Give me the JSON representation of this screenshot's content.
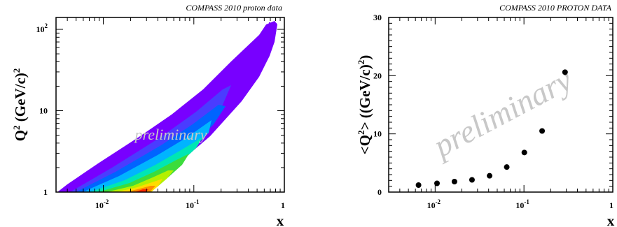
{
  "chart_data": [
    {
      "type": "heatmap",
      "title": "COMPASS 2010 proton data",
      "xlabel": "x",
      "ylabel": "Q^2 (GeV/c)^2",
      "xscale": "log",
      "yscale": "log",
      "xlim": [
        0.003,
        1
      ],
      "ylim": [
        1,
        140
      ],
      "x_ticks": [
        {
          "base": "10",
          "exp": "-2"
        },
        {
          "base": "10",
          "exp": "-1"
        },
        {
          "base": "1",
          "exp": ""
        }
      ],
      "y_ticks": [
        {
          "base": "1",
          "exp": ""
        },
        {
          "base": "10",
          "exp": ""
        },
        {
          "base": "10",
          "exp": "2"
        }
      ],
      "watermark": "preliminary",
      "colormap": [
        "#7800ff",
        "#4a3cff",
        "#0064ff",
        "#00b4ff",
        "#00e6b4",
        "#3cdc3c",
        "#b4f000",
        "#ffdc00",
        "#ff8c00",
        "#ff2800"
      ]
    },
    {
      "type": "scatter",
      "title": "COMPASS 2010 PROTON DATA",
      "xlabel": "x",
      "ylabel": "<Q^2> ((GeV/c)^2)",
      "xscale": "log",
      "xlim": [
        0.003,
        1
      ],
      "ylim": [
        0,
        30
      ],
      "x_ticks": [
        {
          "base": "10",
          "exp": "-2"
        },
        {
          "base": "10",
          "exp": "-1"
        },
        {
          "base": "1",
          "exp": ""
        }
      ],
      "y_ticks": [
        "0",
        "10",
        "20",
        "30"
      ],
      "watermark": "preliminary",
      "marker_color": "#000000",
      "points": [
        {
          "x": 0.0065,
          "y": 1.2
        },
        {
          "x": 0.0105,
          "y": 1.5
        },
        {
          "x": 0.0165,
          "y": 1.8
        },
        {
          "x": 0.026,
          "y": 2.1
        },
        {
          "x": 0.041,
          "y": 2.8
        },
        {
          "x": 0.064,
          "y": 4.3
        },
        {
          "x": 0.101,
          "y": 6.8
        },
        {
          "x": 0.16,
          "y": 10.5
        },
        {
          "x": 0.29,
          "y": 20.6
        }
      ]
    }
  ]
}
